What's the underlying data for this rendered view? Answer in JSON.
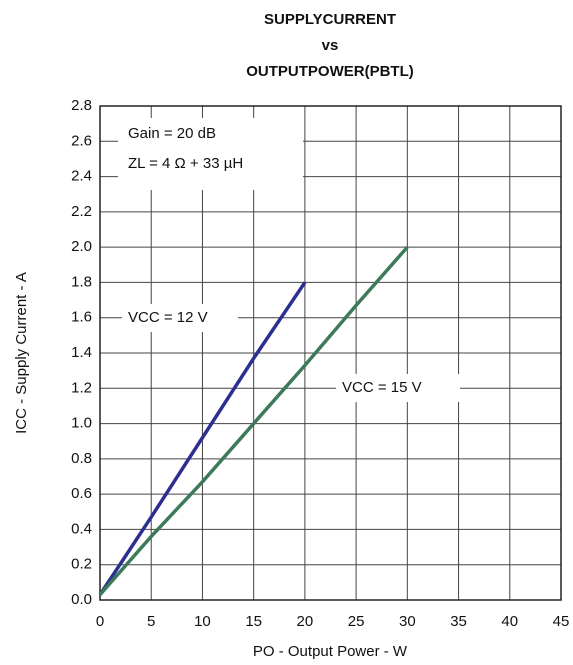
{
  "chart_data": {
    "type": "line",
    "title": [
      "SUPPLYCURRENT",
      "vs",
      "OUTPUTPOWER(PBTL)"
    ],
    "x_label": "PO - Output Power - W",
    "y_label": "ICC - Supply Current - A",
    "annotations": [
      "Gain = 20 dB",
      "ZL = 4 Ω + 33 µH"
    ],
    "series": [
      {
        "name": "VCC = 12 V",
        "color": "#2b2f8f",
        "x": [
          0,
          5,
          10,
          15,
          20
        ],
        "values": [
          0.03,
          0.47,
          0.92,
          1.37,
          1.8
        ]
      },
      {
        "name": "VCC = 15 V",
        "color": "#3d7a5a",
        "x": [
          0,
          5,
          10,
          15,
          20,
          25,
          30
        ],
        "values": [
          0.03,
          0.36,
          0.67,
          1.0,
          1.33,
          1.67,
          2.0
        ]
      }
    ],
    "xlim": [
      0,
      45
    ],
    "xticks": [
      0,
      5,
      10,
      15,
      20,
      25,
      30,
      35,
      40,
      45
    ],
    "ylim": [
      0,
      2.8
    ],
    "yticks": [
      {
        "value": 0,
        "label": "0.0"
      },
      0.2,
      0.4,
      0.6,
      0.8,
      {
        "value": 1,
        "label": "1.0"
      },
      1.2,
      1.4,
      1.6,
      1.8,
      {
        "value": 2,
        "label": "2.0"
      },
      2.2,
      2.4,
      2.6,
      2.8
    ],
    "grid": true
  }
}
